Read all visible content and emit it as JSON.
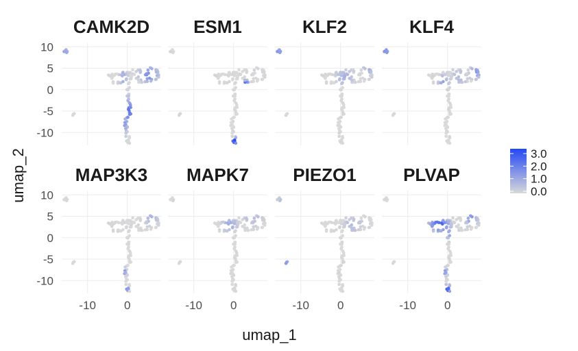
{
  "chart_data": {
    "type": "scatter",
    "xlabel": "umap_1",
    "ylabel": "umap_2",
    "xlim": [
      -16.5,
      8.5
    ],
    "ylim": [
      -13,
      11
    ],
    "x_ticks": [
      "-10",
      "0"
    ],
    "x_tick_values": [
      -10,
      0
    ],
    "y_ticks": [
      "10",
      "5",
      "0",
      "-5",
      "-10"
    ],
    "y_tick_values": [
      10,
      5,
      0,
      -5,
      -10
    ],
    "grid": true,
    "legend": {
      "position": "right",
      "labels": [
        "3.0",
        "2.0",
        "1.0",
        "0.0"
      ],
      "min": 0,
      "max": 3,
      "color_low": "#d9d9d9",
      "color_high": "#2447f5"
    },
    "panels": [
      {
        "gene": "CAMK2D",
        "hotspots": [
          [
            -1,
            3,
            1.2,
            2.8,
            0.9
          ],
          [
            0.5,
            -5,
            1.6,
            3.0,
            2.0
          ],
          [
            -1,
            -8,
            1.5,
            2.5,
            1.3
          ],
          [
            5.5,
            3.5,
            2.5,
            2.0,
            1.6
          ],
          [
            -15.5,
            8.9,
            1.0,
            1.0,
            1.2
          ]
        ]
      },
      {
        "gene": "ESM1",
        "hotspots": [
          [
            0.2,
            -12,
            0.8,
            0.8,
            3.0
          ],
          [
            3,
            1.5,
            0.7,
            0.7,
            2.4
          ]
        ]
      },
      {
        "gene": "KLF2",
        "hotspots": [
          [
            -15.5,
            8.9,
            1.0,
            1.0,
            1.5
          ],
          [
            1,
            3,
            2.5,
            2.0,
            0.8
          ],
          [
            7,
            4.5,
            1.5,
            1.5,
            0.8
          ]
        ]
      },
      {
        "gene": "KLF4",
        "hotspots": [
          [
            -15.5,
            8.9,
            1.0,
            1.0,
            1.6
          ],
          [
            7,
            4,
            1.5,
            1.5,
            1.5
          ],
          [
            -1,
            2,
            1.5,
            1.5,
            1.1
          ],
          [
            3,
            3,
            2.0,
            2.0,
            0.7
          ]
        ]
      },
      {
        "gene": "MAP3K3",
        "hotspots": [
          [
            -1,
            -8,
            0.8,
            1.0,
            1.6
          ],
          [
            0,
            -12,
            0.5,
            0.5,
            1.8
          ],
          [
            6,
            4.5,
            2.0,
            1.5,
            0.8
          ]
        ]
      },
      {
        "gene": "MAPK7",
        "hotspots": [
          [
            -1,
            3,
            2.0,
            1.5,
            1.1
          ],
          [
            5,
            4.5,
            2.5,
            1.5,
            0.7
          ]
        ]
      },
      {
        "gene": "PIEZO1",
        "hotspots": [
          [
            -13.5,
            -6,
            0.6,
            0.6,
            1.6
          ],
          [
            -15,
            8.9,
            1.0,
            1.0,
            0.6
          ],
          [
            3,
            3,
            2.5,
            2.0,
            0.6
          ]
        ]
      },
      {
        "gene": "PLVAP",
        "hotspots": [
          [
            -2,
            3,
            2.5,
            1.5,
            2.7
          ],
          [
            0,
            -12,
            0.8,
            1.0,
            2.7
          ],
          [
            -1,
            -8,
            1.0,
            1.0,
            1.6
          ],
          [
            6,
            4.5,
            1.5,
            1.5,
            1.6
          ],
          [
            1,
            1,
            1.5,
            1.5,
            1.5
          ]
        ]
      }
    ]
  }
}
